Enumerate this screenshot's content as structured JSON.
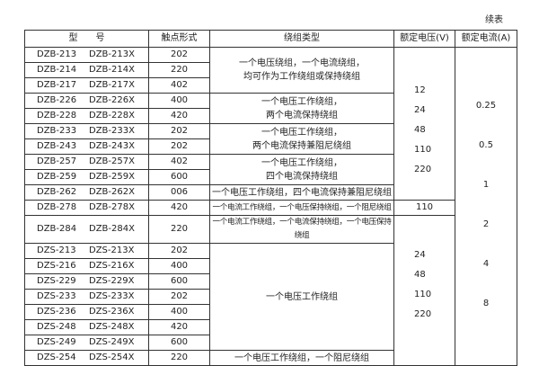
{
  "continued_label": "续表",
  "headers": [
    "型　　号",
    "触点形式",
    "绕组类型",
    "额定电压(V)",
    "额定电流(A)"
  ],
  "rows": [
    {
      "model": "DZB-213",
      "model_x": "DZB-213X",
      "contact": "202"
    },
    {
      "model": "DZB-214",
      "model_x": "DZB-214X",
      "contact": "220"
    },
    {
      "model": "DZB-217",
      "model_x": "DZB-217X",
      "contact": "402"
    },
    {
      "model": "DZB-226",
      "model_x": "DZB-226X",
      "contact": "400"
    },
    {
      "model": "DZB-228",
      "model_x": "DZB-228X",
      "contact": "420"
    },
    {
      "model": "DZB-233",
      "model_x": "DZB-233X",
      "contact": "202"
    },
    {
      "model": "DZB-243",
      "model_x": "DZB-243X",
      "contact": "202"
    },
    {
      "model": "DZB-257",
      "model_x": "DZB-257X",
      "contact": "402"
    },
    {
      "model": "DZB-259",
      "model_x": "DZB-259X",
      "contact": "600"
    },
    {
      "model": "DZB-262",
      "model_x": "DZB-262X",
      "contact": "006"
    },
    {
      "model": "DZB-278",
      "model_x": "DZB-278X",
      "contact": "420"
    },
    {
      "model": "DZB-284",
      "model_x": "DZB-284X",
      "contact": "220"
    },
    {
      "model": "DZS-213",
      "model_x": "DZS-213X",
      "contact": "202"
    },
    {
      "model": "DZS-216",
      "model_x": "DZS-216X",
      "contact": "400"
    },
    {
      "model": "DZS-229",
      "model_x": "DZS-229X",
      "contact": "600"
    },
    {
      "model": "DZS-233",
      "model_x": "DZS-233X",
      "contact": "202"
    },
    {
      "model": "DZS-236",
      "model_x": "DZS-236X",
      "contact": "400"
    },
    {
      "model": "DZS-248",
      "model_x": "DZS-248X",
      "contact": "420"
    },
    {
      "model": "DZS-249",
      "model_x": "DZS-249X",
      "contact": "600"
    },
    {
      "model": "DZS-254",
      "model_x": "DZS-254X",
      "contact": "220"
    }
  ],
  "windings": [
    [
      "一个电压绕组，一个电流绕组，",
      "均可作为工作绕组或保持绕组"
    ],
    [
      "一个电压工作绕组，",
      "两个电流保持绕组"
    ],
    [
      "一个电压工作绕组，",
      "两个电流保持兼阻尼绕组"
    ],
    [
      "一个电压工作绕组，",
      "四个电流保持绕组"
    ],
    [
      "一个电压工作绕组，四个电流保持兼阻尼绕组"
    ],
    [
      "一个电流工作绕组，一个电压保持绕组，一个阻尼绕组"
    ],
    [
      "一个电流工作绕组，一个电流保持绕组，一个电压保持绕组"
    ],
    [
      "一个电压工作绕组"
    ],
    [
      "一个电压工作绕组，一个阻尼绕组"
    ]
  ],
  "voltages": {
    "group1": [
      "12",
      "24",
      "48",
      "110",
      "220"
    ],
    "dzb278": "110",
    "group2": [
      "24",
      "48",
      "110",
      "220"
    ]
  },
  "currents": [
    "0.25",
    "0.5",
    "1",
    "2",
    "4",
    "8"
  ]
}
